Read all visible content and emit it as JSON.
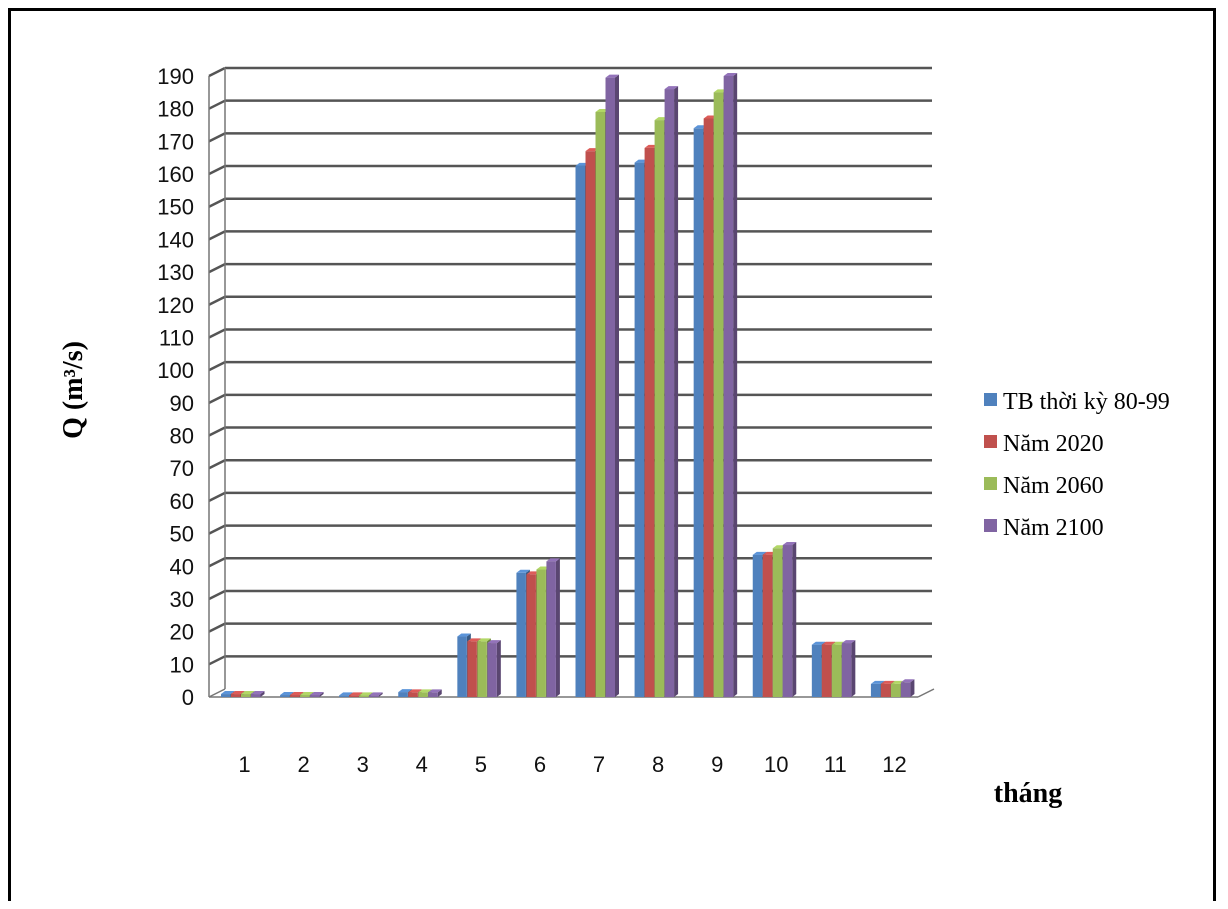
{
  "chart_data": {
    "type": "bar",
    "categories": [
      "1",
      "2",
      "3",
      "4",
      "5",
      "6",
      "7",
      "8",
      "9",
      "10",
      "11",
      "12"
    ],
    "series": [
      {
        "name": "TB thời kỳ 80-99",
        "color": "#4F81BD",
        "values": [
          0.9,
          0.6,
          0.5,
          1.5,
          18.5,
          38,
          162.5,
          163.5,
          174,
          43.5,
          16,
          4
        ]
      },
      {
        "name": "Năm 2020",
        "color": "#C0504D",
        "values": [
          0.9,
          0.6,
          0.5,
          1.4,
          17,
          37.5,
          167,
          168,
          177,
          43.5,
          16,
          4
        ]
      },
      {
        "name": "Năm 2060",
        "color": "#9BBB59",
        "values": [
          0.9,
          0.6,
          0.5,
          1.4,
          17,
          39,
          179,
          176.5,
          185,
          45.5,
          16,
          4
        ]
      },
      {
        "name": "Năm 2100",
        "color": "#8064A2",
        "values": [
          0.9,
          0.6,
          0.5,
          1.4,
          16.5,
          41.5,
          189.5,
          186,
          190,
          46.5,
          16.5,
          4.5
        ]
      }
    ],
    "yticks": [
      "0",
      "10",
      "20",
      "30",
      "40",
      "50",
      "60",
      "70",
      "80",
      "90",
      "100",
      "110",
      "120",
      "130",
      "140",
      "150",
      "160",
      "170",
      "180",
      "190"
    ],
    "ylim": [
      0,
      190
    ],
    "ylabel": "Q  (m³/s)",
    "xlabel": "tháng",
    "grid": true,
    "legend": "right"
  }
}
